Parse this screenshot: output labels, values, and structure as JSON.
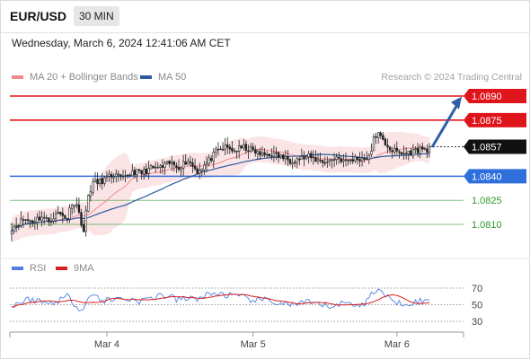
{
  "header": {
    "symbol": "EUR/USD",
    "timeframe": "30 MIN"
  },
  "timestamp": "Wednesday, March 6, 2024 12:41:06 AM CET",
  "legend": {
    "ma_bollinger": "MA 20 + Bollinger Bands",
    "ma50": "MA 50",
    "copyright": "Research © 2024 Trading Central",
    "rsi": "RSI",
    "ma9": "9MA"
  },
  "colors": {
    "bands": "#f6c4c8",
    "ma20": "#f08a8f",
    "ma50": "#2b5aa0",
    "resistance": "#e0141b",
    "support_blue": "#2e6fdc",
    "support_green": "#2e9a2e",
    "rsi": "#4f7fe0",
    "ma9": "#d81e1e",
    "arrow": "#2f5fa6",
    "price_box": "#111111"
  },
  "chart_data": [
    {
      "type": "candlestick",
      "title": "",
      "ylim": [
        1.08,
        1.0895
      ],
      "x_labels": [
        "Mar 4",
        "Mar 5",
        "Mar 6"
      ],
      "current_price": "1.0857",
      "levels": [
        {
          "label": "1.0890",
          "value": 1.089,
          "kind": "resistance"
        },
        {
          "label": "1.0875",
          "value": 1.0875,
          "kind": "resistance"
        },
        {
          "label": "1.0840",
          "value": 1.084,
          "kind": "support"
        },
        {
          "label": "1.0825",
          "value": 1.0825,
          "kind": "target"
        },
        {
          "label": "1.0810",
          "value": 1.081,
          "kind": "target"
        }
      ],
      "forecast": {
        "from": 1.0857,
        "to": 1.0889
      },
      "close_anchors": [
        [
          0,
          1.0808
        ],
        [
          5,
          1.0813
        ],
        [
          9,
          1.0812
        ],
        [
          13,
          1.0815
        ],
        [
          16,
          1.0812
        ],
        [
          20,
          1.0817
        ],
        [
          24,
          1.0814
        ],
        [
          26,
          1.0824
        ],
        [
          28,
          1.0822
        ],
        [
          31,
          1.0806
        ],
        [
          33,
          1.0828
        ],
        [
          35,
          1.0836
        ],
        [
          37,
          1.0836
        ],
        [
          40,
          1.0838
        ],
        [
          44,
          1.0841
        ],
        [
          48,
          1.0838
        ],
        [
          52,
          1.0843
        ],
        [
          56,
          1.0842
        ],
        [
          60,
          1.0845
        ],
        [
          64,
          1.0845
        ],
        [
          68,
          1.0848
        ],
        [
          72,
          1.0846
        ],
        [
          76,
          1.085
        ],
        [
          80,
          1.0843
        ],
        [
          84,
          1.0848
        ],
        [
          88,
          1.0855
        ],
        [
          92,
          1.0858
        ],
        [
          96,
          1.0856
        ],
        [
          100,
          1.0858
        ],
        [
          104,
          1.0856
        ],
        [
          108,
          1.0853
        ],
        [
          112,
          1.0854
        ],
        [
          116,
          1.0852
        ],
        [
          120,
          1.085
        ],
        [
          124,
          1.0851
        ],
        [
          128,
          1.0852
        ],
        [
          132,
          1.085
        ],
        [
          136,
          1.0849
        ],
        [
          140,
          1.0852
        ],
        [
          144,
          1.0849
        ],
        [
          148,
          1.0851
        ],
        [
          152,
          1.0851
        ],
        [
          155,
          1.0854
        ],
        [
          156,
          1.0865
        ],
        [
          158,
          1.0866
        ],
        [
          160,
          1.0862
        ],
        [
          164,
          1.0856
        ],
        [
          168,
          1.0854
        ],
        [
          172,
          1.0855
        ],
        [
          176,
          1.0857
        ],
        [
          180,
          1.0857
        ]
      ]
    },
    {
      "type": "line",
      "title": "RSI",
      "ylim": [
        25,
        75
      ],
      "yticks": [
        70,
        50,
        30
      ],
      "series": [
        {
          "name": "RSI"
        },
        {
          "name": "9MA"
        }
      ],
      "rsi_anchors": [
        [
          0,
          49
        ],
        [
          8,
          57
        ],
        [
          16,
          51
        ],
        [
          24,
          60
        ],
        [
          30,
          44
        ],
        [
          34,
          62
        ],
        [
          40,
          55
        ],
        [
          48,
          58
        ],
        [
          56,
          54
        ],
        [
          64,
          62
        ],
        [
          72,
          56
        ],
        [
          80,
          58
        ],
        [
          88,
          64
        ],
        [
          96,
          60
        ],
        [
          104,
          56
        ],
        [
          112,
          54
        ],
        [
          120,
          50
        ],
        [
          128,
          52
        ],
        [
          136,
          48
        ],
        [
          144,
          52
        ],
        [
          152,
          50
        ],
        [
          156,
          67
        ],
        [
          158,
          68
        ],
        [
          162,
          58
        ],
        [
          168,
          52
        ],
        [
          176,
          54
        ],
        [
          180,
          55
        ]
      ],
      "ma9_anchors": [
        [
          0,
          48
        ],
        [
          16,
          52
        ],
        [
          30,
          54
        ],
        [
          48,
          56
        ],
        [
          64,
          57
        ],
        [
          80,
          58
        ],
        [
          96,
          59
        ],
        [
          112,
          55
        ],
        [
          128,
          52
        ],
        [
          144,
          50
        ],
        [
          152,
          49
        ],
        [
          160,
          56
        ],
        [
          168,
          54
        ],
        [
          180,
          52
        ]
      ]
    }
  ]
}
